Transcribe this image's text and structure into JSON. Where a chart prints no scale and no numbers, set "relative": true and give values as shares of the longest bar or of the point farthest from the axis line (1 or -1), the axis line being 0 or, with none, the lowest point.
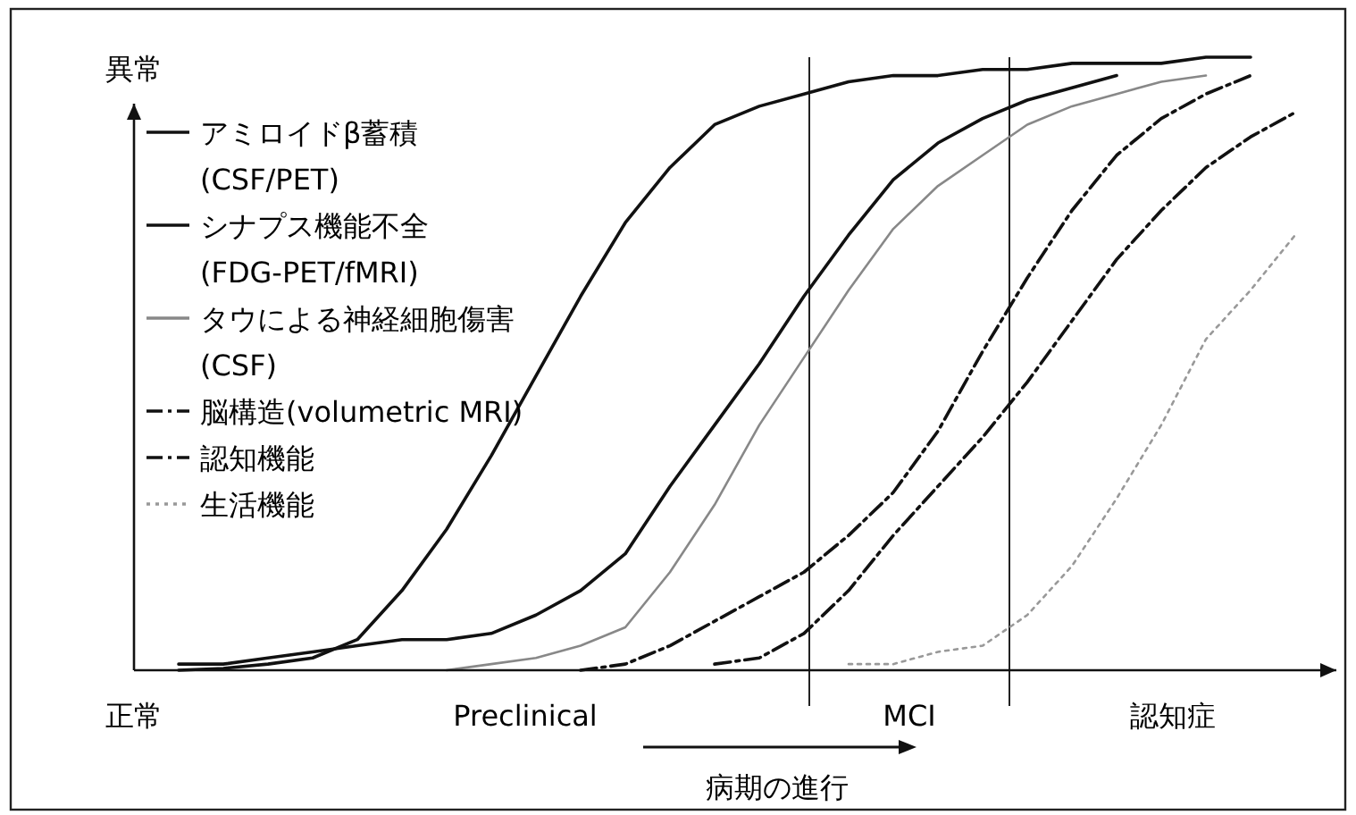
{
  "chart_data": {
    "type": "line",
    "relative": true,
    "ylabel": "異常",
    "legend": "top left",
    "categories": [
      null,
      null,
      null,
      null,
      null,
      null,
      null,
      null,
      null,
      null,
      null,
      null,
      null,
      null,
      null,
      null,
      null,
      null,
      null,
      null,
      null,
      null,
      null,
      null,
      null,
      null
    ],
    "series": [
      {
        "name": "アミロイドβ蓄積(CSF/PET)",
        "color": "#111111",
        "line_style": "solid",
        "values": [
          0,
          0.003,
          0.01,
          0.02,
          0.05,
          0.13,
          0.23,
          0.35,
          0.48,
          0.61,
          0.73,
          0.82,
          0.89,
          0.92,
          0.94,
          0.96,
          0.97,
          0.97,
          0.98,
          0.98,
          0.99,
          0.99,
          0.99,
          1.0,
          1.0,
          null
        ]
      },
      {
        "name": "シナプス機能不全(FDG-PET/fMRI)",
        "color": "#111111",
        "line_style": "solid",
        "values": [
          0.01,
          0.01,
          0.02,
          0.03,
          0.04,
          0.05,
          0.05,
          0.06,
          0.09,
          0.13,
          0.19,
          0.3,
          0.4,
          0.5,
          0.61,
          0.71,
          0.8,
          0.86,
          0.9,
          0.93,
          0.95,
          0.97,
          null,
          null,
          null,
          null
        ]
      },
      {
        "name": "タウによる神経細胞傷害(CSF)",
        "color": "#888888",
        "line_style": "solid",
        "values": [
          null,
          null,
          null,
          null,
          null,
          null,
          0,
          0.01,
          0.02,
          0.04,
          0.07,
          0.16,
          0.27,
          0.4,
          0.51,
          0.62,
          0.72,
          0.79,
          0.84,
          0.89,
          0.92,
          0.94,
          0.96,
          0.97,
          null,
          null
        ]
      },
      {
        "name": "脳構造(volumetric MRI)",
        "color": "#111111",
        "line_style": "dashed",
        "values": [
          null,
          null,
          null,
          null,
          null,
          null,
          null,
          null,
          null,
          0,
          0.01,
          0.04,
          0.08,
          0.12,
          0.16,
          0.22,
          0.29,
          0.39,
          0.52,
          0.64,
          0.75,
          0.84,
          0.9,
          0.94,
          0.97,
          null
        ]
      },
      {
        "name": "認知機能",
        "color": "#111111",
        "line_style": "dashed",
        "values": [
          null,
          null,
          null,
          null,
          null,
          null,
          null,
          null,
          null,
          null,
          null,
          null,
          0.01,
          0.02,
          0.06,
          0.13,
          0.22,
          0.3,
          0.38,
          0.47,
          0.57,
          0.67,
          0.75,
          0.82,
          0.87,
          0.91
        ]
      },
      {
        "name": "生活機能",
        "color": "#999999",
        "line_style": "dotted",
        "values": [
          null,
          null,
          null,
          null,
          null,
          null,
          null,
          null,
          null,
          null,
          null,
          null,
          null,
          null,
          null,
          0.01,
          0.01,
          0.03,
          0.04,
          0.09,
          0.17,
          0.28,
          0.4,
          0.54,
          0.62,
          0.71
        ]
      }
    ],
    "annotations": [
      "正常",
      "Preclinical",
      "MCI",
      "認知症",
      "病期の進行"
    ]
  }
}
